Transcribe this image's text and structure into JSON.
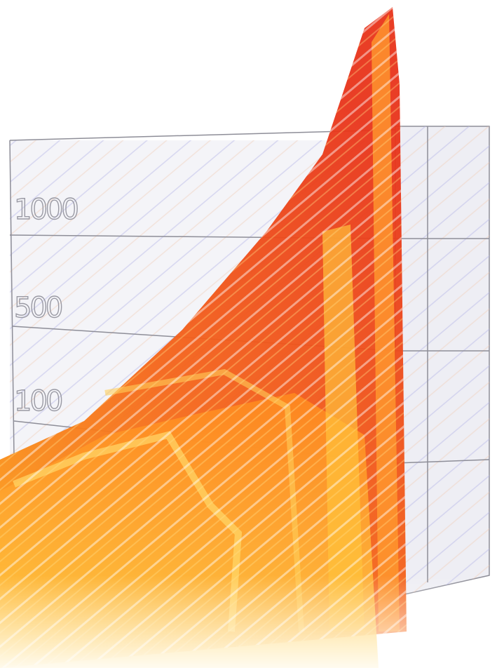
{
  "axis_labels": [
    "1000",
    "500",
    "100"
  ]
}
